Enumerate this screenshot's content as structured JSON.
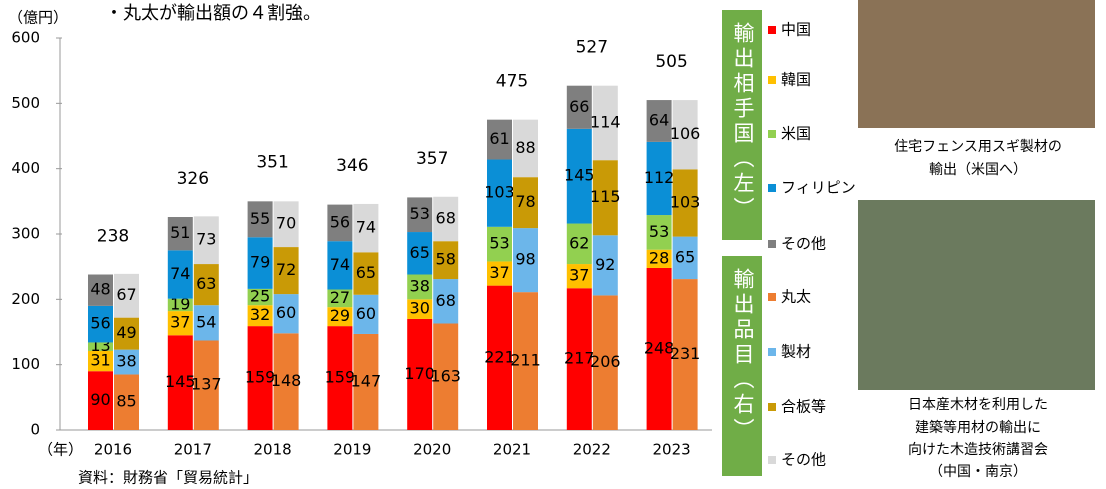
{
  "chart_data": {
    "type": "bar",
    "stacked": true,
    "note": "・丸太が輸出額の４割強。",
    "y_unit": "（億円）",
    "x_unit": "（年）",
    "source": "資料：財務省「貿易統計」",
    "categories": [
      "2016",
      "2017",
      "2018",
      "2019",
      "2020",
      "2021",
      "2022",
      "2023"
    ],
    "totals": [
      238,
      326,
      351,
      346,
      357,
      475,
      527,
      505
    ],
    "ylim": [
      0,
      600
    ],
    "yticks": [
      0,
      100,
      200,
      300,
      400,
      500,
      600
    ],
    "groups": [
      {
        "title": "輸出相手国（左）",
        "color": "#70ad47",
        "series": [
          {
            "name": "中国",
            "color": "#ff0000",
            "values": [
              90,
              145,
              159,
              159,
              170,
              221,
              217,
              248
            ]
          },
          {
            "name": "韓国",
            "color": "#ffc000",
            "values": [
              31,
              37,
              32,
              29,
              30,
              37,
              37,
              28
            ]
          },
          {
            "name": "米国",
            "color": "#92d050",
            "values": [
              13,
              19,
              25,
              27,
              38,
              53,
              62,
              53
            ]
          },
          {
            "name": "フィリピン",
            "color": "#0b8fd6",
            "values": [
              56,
              74,
              79,
              74,
              65,
              103,
              145,
              112
            ]
          },
          {
            "name": "その他",
            "color": "#7f7f7f",
            "values": [
              48,
              51,
              55,
              56,
              53,
              61,
              66,
              64
            ]
          }
        ]
      },
      {
        "title": "輸出品目（右）",
        "color": "#70ad47",
        "series": [
          {
            "name": "丸太",
            "color": "#ed7d31",
            "values": [
              85,
              137,
              148,
              147,
              163,
              211,
              206,
              231
            ]
          },
          {
            "name": "製材",
            "color": "#6cb6ea",
            "values": [
              38,
              54,
              60,
              60,
              68,
              98,
              92,
              65
            ]
          },
          {
            "name": "合板等",
            "color": "#c99a06",
            "values": [
              49,
              63,
              72,
              65,
              58,
              78,
              115,
              103
            ]
          },
          {
            "name": "その他",
            "color": "#d9d9d9",
            "values": [
              67,
              73,
              70,
              74,
              68,
              88,
              114,
              106
            ]
          }
        ]
      }
    ],
    "photos": [
      {
        "caption": [
          "住宅フェンス用スギ製材の",
          "輸出（米国へ）"
        ]
      },
      {
        "caption": [
          "日本産木材を利用した",
          "建築等用材の輸出に",
          "向けた木造技術講習会",
          "（中国・南京）"
        ]
      }
    ]
  }
}
